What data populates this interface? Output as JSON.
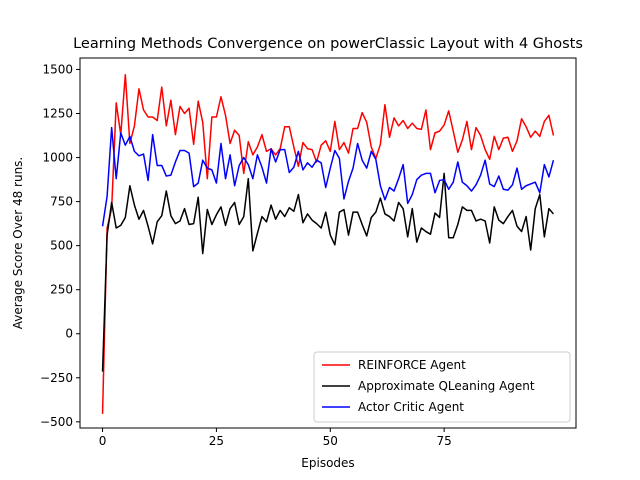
{
  "chart_data": {
    "type": "line",
    "title": "Learning Methods Convergence on powerClassic Layout with 4 Ghosts",
    "xlabel": "Episodes",
    "ylabel": "Average Score Over 48 runs.",
    "xlim": [
      -4.95,
      103.95
    ],
    "ylim": [
      -535,
      1565
    ],
    "xticks": [
      0,
      25,
      50,
      75
    ],
    "yticks": [
      -500,
      -250,
      0,
      250,
      500,
      750,
      1000,
      1250,
      1500
    ],
    "grid": false,
    "legend_position": "lower-right",
    "series": [
      {
        "name": "REINFORCE Agent",
        "color": "#ff0000",
        "values": [
          -455,
          600,
          710,
          1310,
          1130,
          1470,
          1080,
          1180,
          1390,
          1270,
          1230,
          1230,
          1210,
          1400,
          1180,
          1325,
          1130,
          1290,
          1250,
          1280,
          1075,
          1320,
          1200,
          880,
          1230,
          1230,
          1345,
          1240,
          1080,
          1155,
          1125,
          910,
          1090,
          1015,
          1060,
          1130,
          1035,
          1050,
          1015,
          1050,
          1175,
          1175,
          1060,
          950,
          1085,
          1050,
          1045,
          975,
          1070,
          1095,
          1035,
          1205,
          1045,
          1085,
          1025,
          1165,
          1165,
          1255,
          1200,
          1060,
          995,
          1075,
          1300,
          1115,
          1225,
          1180,
          1210,
          1165,
          1195,
          1165,
          1160,
          1270,
          1045,
          1140,
          1150,
          1185,
          1265,
          1150,
          1030,
          1100,
          1205,
          1045,
          1170,
          1125,
          1045,
          990,
          1120,
          1045,
          1110,
          1115,
          1035,
          1095,
          1220,
          1175,
          1115,
          1150,
          1120,
          1205,
          1240,
          1125
        ]
      },
      {
        "name": "Approximate QLeaning Agent",
        "color": "#000000",
        "values": [
          -215,
          560,
          745,
          600,
          615,
          660,
          840,
          730,
          650,
          700,
          610,
          510,
          635,
          670,
          810,
          670,
          625,
          640,
          710,
          620,
          625,
          775,
          455,
          705,
          620,
          675,
          720,
          615,
          710,
          745,
          620,
          665,
          880,
          470,
          570,
          665,
          635,
          730,
          650,
          700,
          665,
          715,
          695,
          790,
          630,
          680,
          645,
          625,
          600,
          690,
          560,
          505,
          690,
          705,
          560,
          690,
          690,
          620,
          555,
          660,
          690,
          770,
          680,
          665,
          640,
          745,
          710,
          550,
          710,
          520,
          600,
          580,
          565,
          685,
          660,
          910,
          545,
          545,
          620,
          720,
          700,
          700,
          640,
          650,
          640,
          515,
          720,
          645,
          625,
          665,
          700,
          610,
          580,
          665,
          475,
          710,
          790,
          550,
          710,
          680
        ]
      },
      {
        "name": "Actor Critic Agent",
        "color": "#0000ff",
        "values": [
          610,
          780,
          1170,
          880,
          1140,
          1070,
          1120,
          1035,
          1010,
          1020,
          870,
          1130,
          955,
          955,
          895,
          900,
          975,
          1040,
          1040,
          1025,
          835,
          855,
          985,
          940,
          930,
          855,
          1080,
          880,
          1015,
          840,
          955,
          1000,
          960,
          880,
          1015,
          945,
          855,
          1050,
          975,
          1045,
          1045,
          915,
          945,
          1035,
          930,
          970,
          945,
          985,
          970,
          830,
          940,
          1040,
          995,
          765,
          865,
          940,
          1080,
          985,
          940,
          1035,
          990,
          840,
          760,
          830,
          810,
          880,
          960,
          740,
          790,
          875,
          900,
          910,
          910,
          800,
          870,
          875,
          820,
          860,
          975,
          860,
          840,
          810,
          845,
          900,
          985,
          850,
          835,
          895,
          820,
          815,
          845,
          940,
          820,
          840,
          850,
          860,
          800,
          960,
          890,
          985
        ]
      }
    ]
  }
}
